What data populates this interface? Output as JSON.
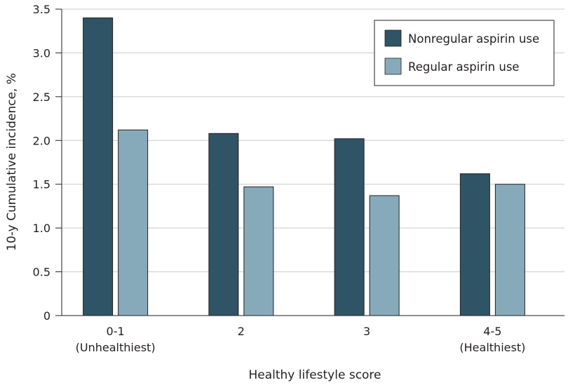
{
  "chart_data": {
    "type": "bar",
    "title": "",
    "xlabel": "Healthy lifestyle score",
    "ylabel": "10-y Cumulative incidence, %",
    "ylim": [
      0,
      3.5
    ],
    "yticks": [
      "0",
      "0.5",
      "1.0",
      "1.5",
      "2.0",
      "2.5",
      "3.0",
      "3.5"
    ],
    "ytick_values": [
      0,
      0.5,
      1.0,
      1.5,
      2.0,
      2.5,
      3.0,
      3.5
    ],
    "grid": true,
    "legend_position": "top-right",
    "categories": [
      {
        "label": "0-1",
        "sublabel": "(Unhealthiest)"
      },
      {
        "label": "2",
        "sublabel": ""
      },
      {
        "label": "3",
        "sublabel": ""
      },
      {
        "label": "4-5",
        "sublabel": "(Healthiest)"
      }
    ],
    "series": [
      {
        "name": "Nonregular aspirin use",
        "color": "#2e5465",
        "values": [
          3.4,
          2.08,
          2.02,
          1.62
        ]
      },
      {
        "name": "Regular aspirin use",
        "color": "#87aabb",
        "values": [
          2.12,
          1.47,
          1.37,
          1.5
        ]
      }
    ]
  }
}
